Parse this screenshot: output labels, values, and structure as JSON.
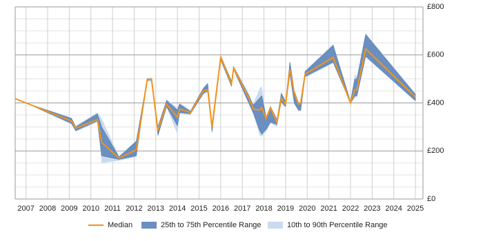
{
  "chart_data": {
    "type": "line",
    "x": [
      2006.5,
      2007.0,
      2009.1,
      2009.3,
      2010.3,
      2010.5,
      2011.3,
      2012.1,
      2012.6,
      2012.8,
      2013.1,
      2013.5,
      2014.0,
      2014.1,
      2014.6,
      2015.2,
      2015.4,
      2015.6,
      2016.0,
      2016.5,
      2016.6,
      2017.3,
      2017.5,
      2017.8,
      2017.9,
      2018.1,
      2018.3,
      2018.6,
      2018.8,
      2019.0,
      2019.2,
      2019.4,
      2019.6,
      2019.7,
      2019.9,
      2021.2,
      2022.0,
      2022.2,
      2022.3,
      2022.7,
      2025.0
    ],
    "series": [
      {
        "name": "Median",
        "color": "#f39419",
        "values": [
          418,
          400,
          325,
          295,
          330,
          235,
          170,
          205,
          495,
          500,
          285,
          395,
          340,
          375,
          360,
          450,
          455,
          300,
          590,
          480,
          545,
          420,
          375,
          370,
          380,
          335,
          380,
          320,
          420,
          395,
          540,
          440,
          395,
          400,
          520,
          590,
          400,
          455,
          455,
          625,
          425
        ]
      }
    ],
    "bands": [
      {
        "name": "25th to 75th Percentile Range",
        "color": "#6a8fc0",
        "lower": [
          418,
          400,
          315,
          285,
          325,
          180,
          165,
          180,
          495,
          495,
          265,
          385,
          305,
          360,
          355,
          440,
          450,
          280,
          580,
          470,
          540,
          400,
          360,
          285,
          270,
          290,
          320,
          310,
          405,
          385,
          520,
          400,
          370,
          370,
          510,
          570,
          400,
          430,
          430,
          595,
          410
        ],
        "upper": [
          418,
          400,
          335,
          300,
          355,
          300,
          175,
          240,
          500,
          500,
          300,
          410,
          370,
          395,
          365,
          460,
          480,
          310,
          595,
          490,
          550,
          430,
          390,
          420,
          430,
          340,
          385,
          330,
          440,
          405,
          570,
          450,
          400,
          400,
          530,
          640,
          405,
          500,
          500,
          685,
          435
        ]
      },
      {
        "name": "10th to 90th Percentile Range",
        "color": "#c9dbee",
        "lower": [
          418,
          400,
          310,
          280,
          320,
          150,
          160,
          175,
          490,
          490,
          260,
          380,
          270,
          355,
          350,
          435,
          445,
          275,
          575,
          465,
          535,
          395,
          355,
          265,
          260,
          280,
          315,
          300,
          400,
          380,
          515,
          395,
          365,
          365,
          505,
          565,
          395,
          420,
          425,
          590,
          405
        ],
        "upper": [
          418,
          400,
          340,
          305,
          360,
          335,
          178,
          245,
          505,
          505,
          305,
          415,
          380,
          400,
          370,
          465,
          485,
          315,
          600,
          495,
          555,
          440,
          395,
          460,
          470,
          345,
          390,
          335,
          445,
          410,
          575,
          455,
          405,
          405,
          535,
          645,
          410,
          520,
          510,
          690,
          440
        ]
      }
    ],
    "xlim": [
      2006.5,
      2025.35
    ],
    "xticks": [
      2007,
      2008,
      2009,
      2010,
      2011,
      2012,
      2013,
      2014,
      2015,
      2016,
      2017,
      2018,
      2019,
      2020,
      2021,
      2022,
      2023,
      2024,
      2025
    ],
    "ylim": [
      0,
      800
    ],
    "yticks": [
      {
        "value": 0,
        "label": "£0"
      },
      {
        "value": 200,
        "label": "£200"
      },
      {
        "value": 400,
        "label": "£400"
      },
      {
        "value": 600,
        "label": "£600"
      },
      {
        "value": 800,
        "label": "£800"
      }
    ],
    "y_minor_ticks": [
      50,
      100,
      150,
      250,
      300,
      350,
      450,
      500,
      550,
      650,
      700,
      750
    ],
    "grid": true
  }
}
